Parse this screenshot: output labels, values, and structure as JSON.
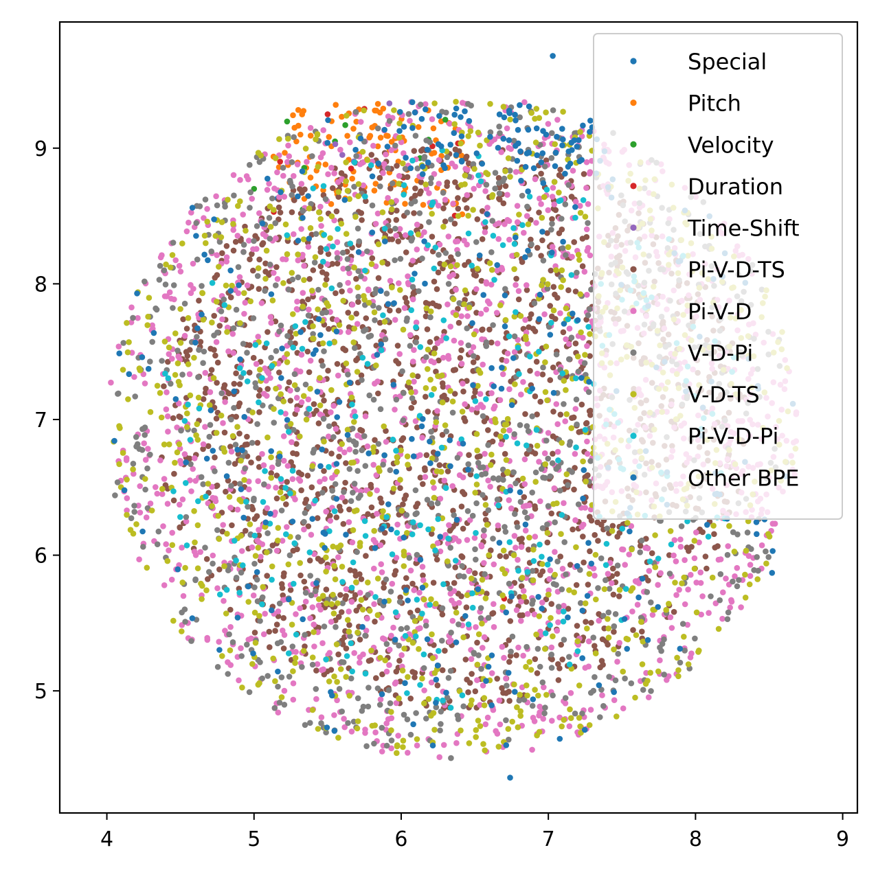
{
  "chart_data": {
    "type": "scatter",
    "title": "",
    "xlabel": "",
    "ylabel": "",
    "xlim": [
      3.68,
      9.1
    ],
    "ylim": [
      4.1,
      9.93
    ],
    "xticks": [
      4,
      5,
      6,
      7,
      8,
      9
    ],
    "yticks": [
      5,
      6,
      7,
      8,
      9
    ],
    "grid": false,
    "legend_position": "top-right",
    "series": [
      {
        "name": "Special",
        "color": "#1f77b4",
        "count": 6,
        "region": "top-blue",
        "points": [
          [
            7.03,
            9.68
          ],
          [
            6.74,
            4.36
          ],
          [
            8.52,
            5.87
          ],
          [
            5.16,
            8.63
          ],
          [
            7.53,
            6.23
          ],
          [
            4.72,
            6.77
          ]
        ]
      },
      {
        "name": "Pitch",
        "color": "#ff7f0e",
        "count": 110,
        "region": "top-orange"
      },
      {
        "name": "Velocity",
        "color": "#2ca02c",
        "count": 10,
        "region": "top-orange",
        "points": [
          [
            5.0,
            8.7
          ],
          [
            6.3,
            9.21
          ],
          [
            5.62,
            9.17
          ],
          [
            5.55,
            9.05
          ]
        ]
      },
      {
        "name": "Duration",
        "color": "#d62728",
        "count": 10,
        "region": "top-orange",
        "points": [
          [
            5.75,
            9.29
          ],
          [
            5.5,
            9.25
          ],
          [
            5.66,
            8.85
          ],
          [
            6.7,
            5.68
          ]
        ]
      },
      {
        "name": "Time-Shift",
        "color": "#9467bd",
        "count": 4,
        "region": "top-orange",
        "points": [
          [
            5.92,
            9.33
          ],
          [
            5.6,
            8.95
          ]
        ]
      },
      {
        "name": "Pi-V-D-TS",
        "color": "#8c564b",
        "count": 1500,
        "region": "core"
      },
      {
        "name": "Pi-V-D",
        "color": "#e377c2",
        "count": 1500,
        "region": "blob"
      },
      {
        "name": "V-D-Pi",
        "color": "#7f7f7f",
        "count": 950,
        "region": "blob"
      },
      {
        "name": "V-D-TS",
        "color": "#bcbd22",
        "count": 900,
        "region": "blob"
      },
      {
        "name": "Pi-V-D-Pi",
        "color": "#17becf",
        "count": 260,
        "region": "core"
      },
      {
        "name": "Other BPE",
        "color": "#1f77b4",
        "count": 350,
        "region": "blob-top"
      }
    ],
    "legend": [
      "Special",
      "Pitch",
      "Velocity",
      "Duration",
      "Time-Shift",
      "Pi-V-D-TS",
      "Pi-V-D",
      "V-D-Pi",
      "V-D-TS",
      "Pi-V-D-Pi",
      "Other BPE"
    ]
  }
}
